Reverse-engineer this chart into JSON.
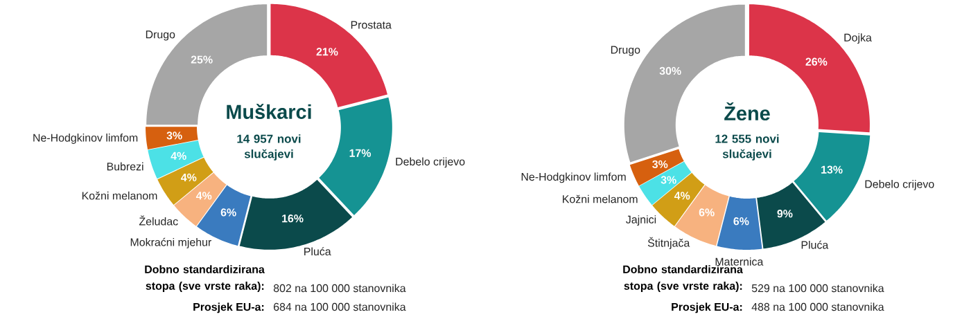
{
  "chart_data": [
    {
      "type": "donut",
      "title": "Muškarci",
      "subtitle": "14 957 novi slučajevi",
      "categories": [
        "Prostata",
        "Debelo crijevo",
        "Pluća",
        "Mokraćni mjehur",
        "Želudac",
        "Kožni melanom",
        "Bubrezi",
        "Ne-Hodgkinov limfom",
        "Drugo"
      ],
      "values": [
        21,
        17,
        16,
        6,
        4,
        4,
        4,
        3,
        25
      ],
      "colors": [
        "#dc3449",
        "#159393",
        "#0b4a4b",
        "#3a7bbf",
        "#f7b27f",
        "#d19e16",
        "#4ce1e6",
        "#d6600f",
        "#a6a6a6"
      ],
      "data_labels": true,
      "value_labels": [
        "21%",
        "17%",
        "16%",
        "6%",
        "4%",
        "4%",
        "4%",
        "3%",
        "25%"
      ],
      "annotations": [
        "Dobno standardizirana stopa (sve vrste raka):",
        "802 na 100 000 stanovnika",
        "Prosjek EU-a:",
        "684 na 100 000 stanovnika"
      ]
    },
    {
      "type": "donut",
      "title": "Žene",
      "subtitle": "12 555 novi slučajevi",
      "categories": [
        "Dojka",
        "Debelo crijevo",
        "Pluća",
        "Maternica",
        "Štitnjača",
        "Jajnici",
        "Kožni melanom",
        "Ne-Hodgkinov limfom",
        "Drugo"
      ],
      "values": [
        26,
        13,
        9,
        6,
        6,
        4,
        3,
        3,
        30
      ],
      "colors": [
        "#dc3449",
        "#159393",
        "#0b4a4b",
        "#3a7bbf",
        "#f7b27f",
        "#d19e16",
        "#4ce1e6",
        "#d6600f",
        "#a6a6a6"
      ],
      "data_labels": true,
      "value_labels": [
        "26%",
        "13%",
        "9%",
        "6%",
        "6%",
        "4%",
        "3%",
        "3%",
        "30%"
      ],
      "annotations": [
        "Dobno standardizirana stopa (sve vrste raka):",
        "529 na 100 000 stanovnika",
        "Prosjek EU-a:",
        "488 na 100 000 stanovnika"
      ]
    }
  ]
}
